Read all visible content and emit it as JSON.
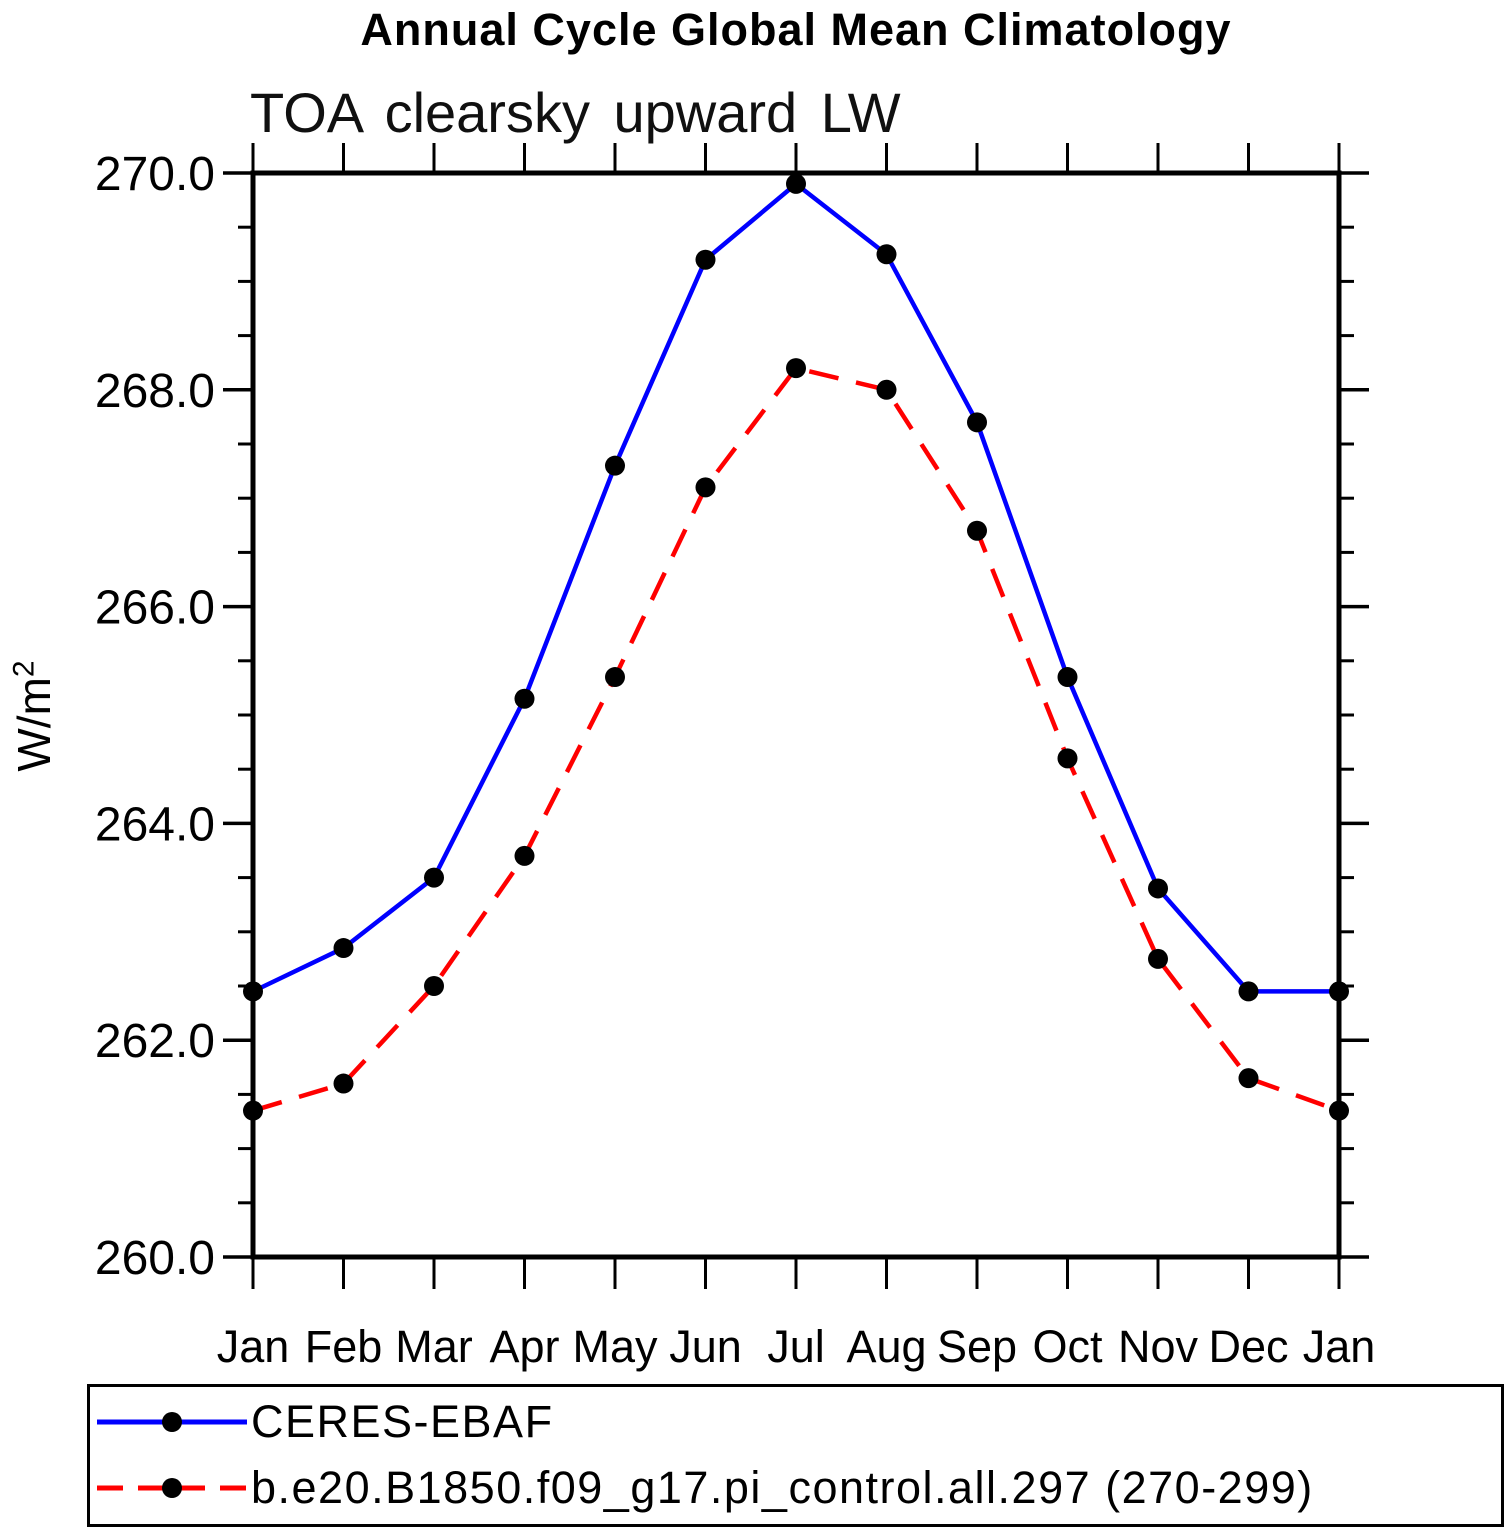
{
  "chart_data": {
    "type": "line",
    "title": "Annual Cycle Global Mean Climatology",
    "subtitle": "TOA clearsky upward LW",
    "ylabel_base": "W/m",
    "ylabel_sup": "2",
    "categories": [
      "Jan",
      "Feb",
      "Mar",
      "Apr",
      "May",
      "Jun",
      "Jul",
      "Aug",
      "Sep",
      "Oct",
      "Nov",
      "Dec",
      "Jan"
    ],
    "series": [
      {
        "name": "CERES-EBAF",
        "color": "#0000ff",
        "line_style": "solid",
        "marker": "filled-circle",
        "values": [
          262.45,
          262.85,
          263.5,
          265.15,
          267.3,
          269.2,
          269.9,
          269.25,
          267.7,
          265.35,
          263.4,
          262.45,
          262.45
        ]
      },
      {
        "name": "b.e20.B1850.f09_g17.pi_control.all.297 (270-299)",
        "color": "#ff0000",
        "line_style": "dashed",
        "marker": "filled-circle",
        "values": [
          261.35,
          261.6,
          262.5,
          263.7,
          265.35,
          267.1,
          268.2,
          268.0,
          266.7,
          264.6,
          262.75,
          261.65,
          261.35
        ]
      }
    ],
    "ylim": [
      260.0,
      270.0
    ],
    "y_major_step": 2.0,
    "y_minor_step": 0.5,
    "y_tick_labels": [
      "260.0",
      "262.0",
      "264.0",
      "266.0",
      "268.0",
      "270.0"
    ],
    "grid": false,
    "axis_color": "#000000",
    "marker_color": "#000000",
    "legend_position": "bottom-box"
  }
}
